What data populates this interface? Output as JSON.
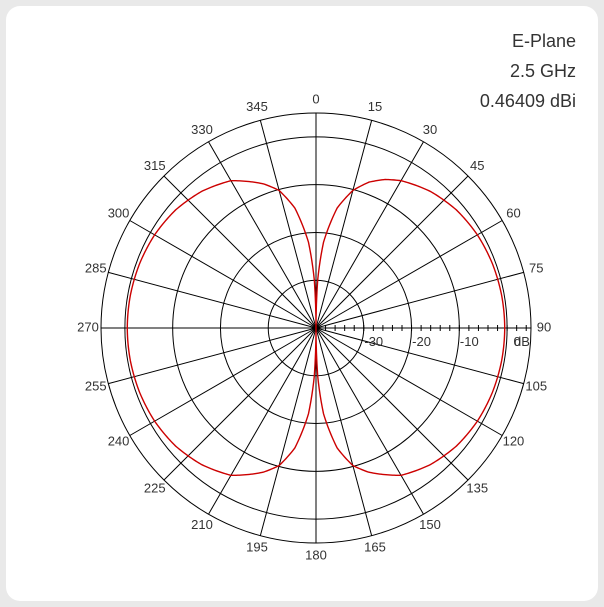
{
  "info": {
    "plane": "E-Plane",
    "frequency": "2.5 GHz",
    "gain": "0.46409 dBi"
  },
  "chart_data": {
    "type": "polar-line",
    "title": "E-Plane",
    "angle_unit": "deg",
    "angle_direction": "clockwise",
    "angle_zero": "top",
    "angle_ticks": [
      0,
      15,
      30,
      45,
      60,
      75,
      90,
      105,
      120,
      135,
      150,
      165,
      180,
      195,
      210,
      225,
      240,
      255,
      270,
      285,
      300,
      315,
      330,
      345
    ],
    "angle_tick_labels": [
      "0",
      "15",
      "30",
      "45",
      "60",
      "75",
      "90",
      "105",
      "120",
      "135",
      "150",
      "165",
      "180",
      "195",
      "210",
      "225",
      "240",
      "255",
      "270",
      "285",
      "300",
      "315",
      "330",
      "345"
    ],
    "radial_unit": "dB",
    "radial_range": [
      -40,
      5
    ],
    "radial_ticks": [
      -30,
      -20,
      -10,
      0
    ],
    "radial_tick_labels": [
      "-30",
      "-20",
      "-10",
      "0"
    ],
    "radial_unit_label": "dB",
    "grid": true,
    "line_color": "#cc0000",
    "series": [
      {
        "angles": [
          0,
          2,
          5,
          10,
          15,
          20,
          25,
          30,
          40,
          50,
          60,
          70,
          80,
          90,
          100,
          110,
          120,
          130,
          140,
          150,
          160,
          165,
          170,
          175,
          178,
          180,
          182,
          185,
          190,
          195,
          200,
          210,
          220,
          230,
          240,
          250,
          260,
          270,
          280,
          290,
          300,
          310,
          320,
          330,
          340,
          345,
          350,
          355,
          358,
          360
        ],
        "values": [
          -40,
          -30,
          -22,
          -14.5,
          -10.2,
          -7.5,
          -5.7,
          -4.4,
          -2.7,
          -1.6,
          -1.0,
          -0.7,
          -0.55,
          -0.5,
          -0.55,
          -0.7,
          -1.0,
          -1.6,
          -2.7,
          -4.4,
          -7.9,
          -10.2,
          -14.5,
          -22,
          -30,
          -40,
          -30,
          -22,
          -14.5,
          -10.2,
          -7.9,
          -4.4,
          -2.7,
          -1.6,
          -1.0,
          -0.7,
          -0.55,
          -0.5,
          -0.55,
          -0.7,
          -1.0,
          -1.6,
          -2.7,
          -4.4,
          -7.9,
          -10.2,
          -14.5,
          -22,
          -30,
          -40
        ]
      }
    ]
  }
}
